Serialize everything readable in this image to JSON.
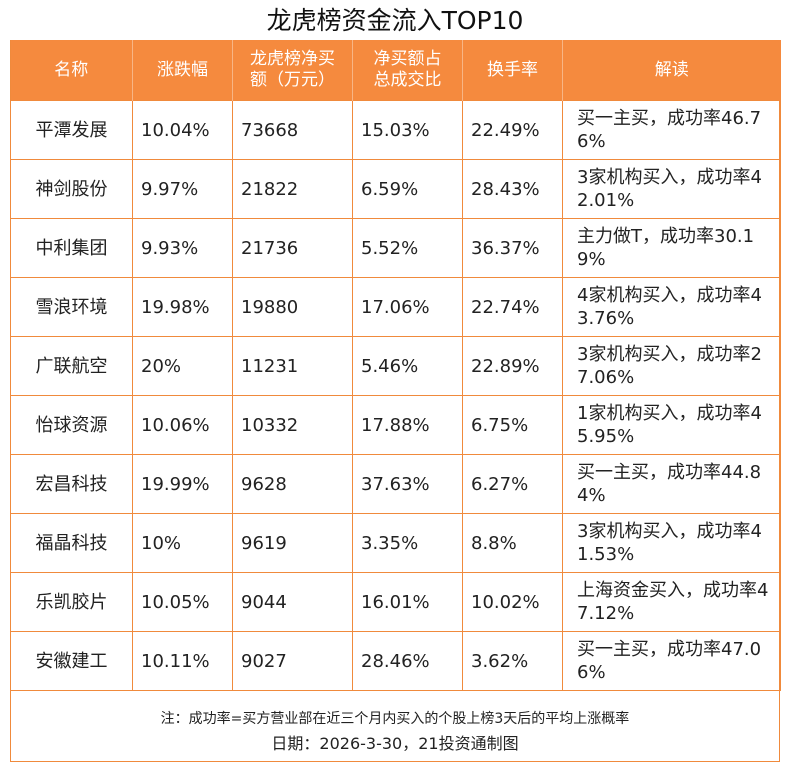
{
  "title": "龙虎榜资金流入TOP10",
  "table": {
    "headers": {
      "name": "名称",
      "change": "涨跌幅",
      "net_buy_line1": "龙虎榜净买",
      "net_buy_line2": "额（万元）",
      "ratio_line1": "净买额占",
      "ratio_line2": "总成交比",
      "turnover": "换手率",
      "note": "解读"
    },
    "rows": [
      {
        "name": "平潭发展",
        "change": "10.04%",
        "net_buy": "73668",
        "ratio": "15.03%",
        "turnover": "22.49%",
        "note": "买一主买，成功率46.76%"
      },
      {
        "name": "神剑股份",
        "change": "9.97%",
        "net_buy": "21822",
        "ratio": "6.59%",
        "turnover": "28.43%",
        "note": "3家机构买入，成功率42.01%"
      },
      {
        "name": "中利集团",
        "change": "9.93%",
        "net_buy": "21736",
        "ratio": "5.52%",
        "turnover": "36.37%",
        "note": "主力做T，成功率30.19%"
      },
      {
        "name": "雪浪环境",
        "change": "19.98%",
        "net_buy": "19880",
        "ratio": "17.06%",
        "turnover": "22.74%",
        "note": "4家机构买入，成功率43.76%"
      },
      {
        "name": "广联航空",
        "change": "20%",
        "net_buy": "11231",
        "ratio": "5.46%",
        "turnover": "22.89%",
        "note": "3家机构买入，成功率27.06%"
      },
      {
        "name": "怡球资源",
        "change": "10.06%",
        "net_buy": "10332",
        "ratio": "17.88%",
        "turnover": "6.75%",
        "note": "1家机构买入，成功率45.95%"
      },
      {
        "name": "宏昌科技",
        "change": "19.99%",
        "net_buy": "9628",
        "ratio": "37.63%",
        "turnover": "6.27%",
        "note": "买一主买，成功率44.84%"
      },
      {
        "name": "福晶科技",
        "change": "10%",
        "net_buy": "9619",
        "ratio": "3.35%",
        "turnover": "8.8%",
        "note": "3家机构买入，成功率41.53%"
      },
      {
        "name": "乐凯胶片",
        "change": "10.05%",
        "net_buy": "9044",
        "ratio": "16.01%",
        "turnover": "10.02%",
        "note": "上海资金买入，成功率47.12%"
      },
      {
        "name": "安徽建工",
        "change": "10.11%",
        "net_buy": "9027",
        "ratio": "28.46%",
        "turnover": "3.62%",
        "note": "买一主买，成功率47.06%"
      }
    ]
  },
  "footer": {
    "note": "注：成功率=买方营业部在近三个月内买入的个股上榜3天后的平均上涨概率",
    "source": "日期：2026-3-30，21投资通制图"
  },
  "colors": {
    "header_bg": "#f58a3e",
    "border": "#f08a3c",
    "header_text": "#ffffff"
  }
}
